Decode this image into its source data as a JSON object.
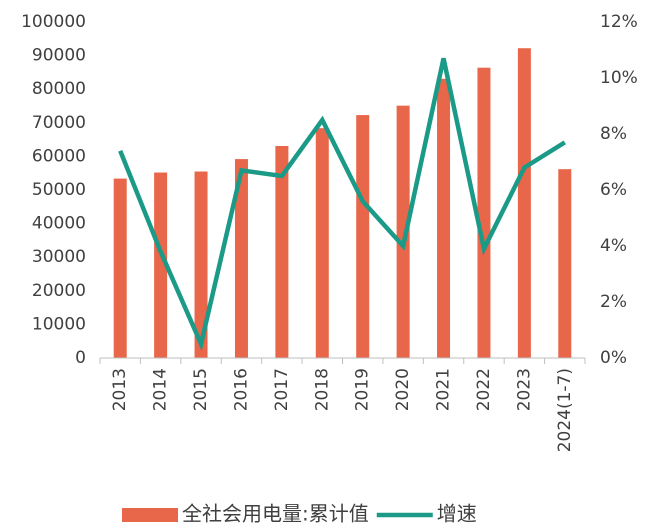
{
  "chart_data": {
    "type": "bar_line",
    "categories": [
      "2013",
      "2014",
      "2015",
      "2016",
      "2017",
      "2018",
      "2019",
      "2020",
      "2021",
      "2022",
      "2023",
      "2024(1-7)"
    ],
    "series": [
      {
        "name": "全社会用电量:累计值",
        "type": "bar",
        "color": "#e8664a",
        "values": [
          53400,
          55200,
          55500,
          59200,
          63100,
          68400,
          72300,
          75100,
          83100,
          86400,
          92200,
          56200
        ]
      },
      {
        "name": "增速",
        "type": "line",
        "axis": "y2",
        "color": "#1a9a87",
        "values": [
          7.4,
          3.8,
          0.5,
          6.7,
          6.5,
          8.5,
          5.6,
          4.0,
          10.7,
          3.9,
          6.8,
          7.7
        ]
      }
    ],
    "ylim": [
      0,
      100000
    ],
    "yticks": [
      0,
      10000,
      20000,
      30000,
      40000,
      50000,
      60000,
      70000,
      80000,
      90000,
      100000
    ],
    "y2lim": [
      0,
      12
    ],
    "y2ticks": [
      {
        "value": 0,
        "label": "0%"
      },
      {
        "value": 2,
        "label": "2%"
      },
      {
        "value": 4,
        "label": "4%"
      },
      {
        "value": 6,
        "label": "6%"
      },
      {
        "value": 8,
        "label": "8%"
      },
      {
        "value": 10,
        "label": "10%"
      },
      {
        "value": 12,
        "label": "12%"
      }
    ],
    "legend": "bottom"
  }
}
